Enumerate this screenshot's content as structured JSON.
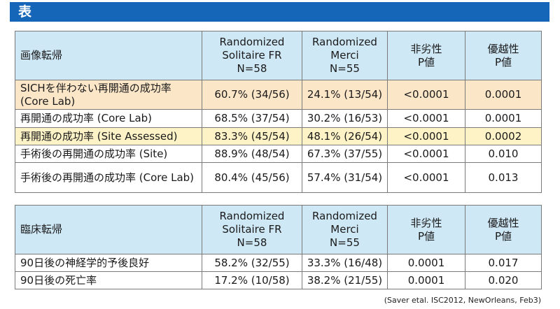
{
  "title": "表",
  "columns": {
    "col1": [
      "Randomized",
      "Solitaire FR",
      "N=58"
    ],
    "col2": [
      "Randomized",
      "Merci",
      "N=55"
    ],
    "col3": [
      "非劣性",
      "P値"
    ],
    "col4": [
      "優越性",
      "P値"
    ]
  },
  "table1": {
    "header": "画像転帰",
    "rows": [
      {
        "label": "SICHを伴わない再開通の成功率 (Core Lab)",
        "v1": "60.7% (34/56)",
        "v2": "24.1% (13/54)",
        "v3": "<0.0001",
        "v4": "0.0001"
      },
      {
        "label": "再開通の成功率 (Core Lab)",
        "v1": "68.5% (37/54)",
        "v2": "30.2% (16/53)",
        "v3": "<0.0001",
        "v4": "0.0001"
      },
      {
        "label": "再開通の成功率 (Site Assessed)",
        "v1": "83.3% (45/54)",
        "v2": "48.1% (26/54)",
        "v3": "<0.0001",
        "v4": "0.0002"
      },
      {
        "label": "手術後の再開通の成功率 (Site)",
        "v1": "88.9% (48/54)",
        "v2": "67.3% (37/55)",
        "v3": "<0.0001",
        "v4": "0.010"
      },
      {
        "label": "手術後の再開通の成功率 (Core Lab)",
        "v1": "80.4% (45/56)",
        "v2": "57.4% (31/54)",
        "v3": "<0.0001",
        "v4": "0.013"
      }
    ]
  },
  "table2": {
    "header": "臨床転帰",
    "rows": [
      {
        "label": "90日後の神経学的予後良好",
        "v1": "58.2% (32/55)",
        "v2": "33.3% (16/48)",
        "v3": "0.0001",
        "v4": "0.017"
      },
      {
        "label": "90日後の死亡率",
        "v1": "17.2% (10/58)",
        "v2": "38.2% (21/55)",
        "v3": "0.0001",
        "v4": "0.020"
      }
    ]
  },
  "source": "(Saver etal. ISC2012, NewOrleans, Feb3)",
  "colors": {
    "title_bar": "#1565b8",
    "header_bg": "#cfe8f6",
    "highlight_orange": "#fce6c8",
    "highlight_yellow": "#fdf3c7",
    "border": "#7a7a7a"
  }
}
